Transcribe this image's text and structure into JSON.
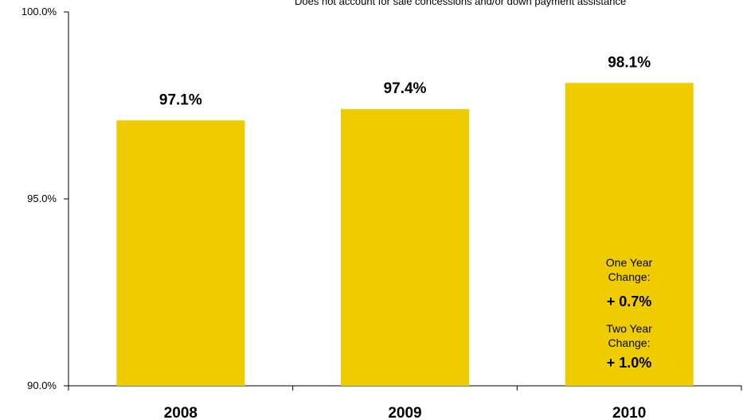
{
  "chart_data": {
    "type": "bar",
    "categories": [
      "2008",
      "2009",
      "2010"
    ],
    "values": [
      97.1,
      97.4,
      98.1
    ],
    "data_labels": [
      "97.1%",
      "97.4%",
      "98.1%"
    ],
    "ylim": [
      90,
      100
    ],
    "yticks": [
      {
        "value": 90,
        "label": "90.0%"
      },
      {
        "value": 95,
        "label": "95.0%"
      },
      {
        "value": 100,
        "label": "100.0%"
      }
    ],
    "bar_color": "#EECC00",
    "grid": false,
    "legend": "none",
    "note": "Does not account for sale concessions and/or down payment assistance",
    "annotations": {
      "one_year_label": "One Year Change:",
      "one_year_value": "+ 0.7%",
      "two_year_label": "Two Year Change:",
      "two_year_value": "+ 1.0%"
    }
  }
}
